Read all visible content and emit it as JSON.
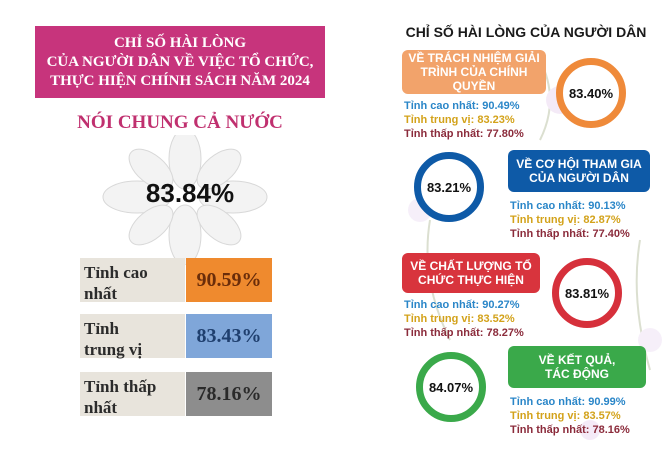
{
  "left": {
    "title_lines": [
      "CHỈ SỐ HÀI LÒNG",
      "CỦA NGƯỜI DÂN VỀ VIỆC TỔ CHỨC,",
      "THỰC HIỆN CHÍNH SÁCH NĂM 2024"
    ],
    "subtitle": "NÓI CHUNG CẢ NƯỚC",
    "overall": "83.84%",
    "stats": [
      {
        "label_1": "Tỉnh cao",
        "label_2": "nhất",
        "value": "90.59%",
        "color": "#ef8a2e"
      },
      {
        "label_1": "Tỉnh",
        "label_2": "trung vị",
        "value": "83.43%",
        "color": "#7fa6d9"
      },
      {
        "label_1": "Tỉnh thấp",
        "label_2": "nhất",
        "value": "78.16%",
        "color": "#8d8d8d"
      }
    ]
  },
  "right": {
    "title": "CHỈ SỐ HÀI LÒNG CỦA NGƯỜI DÂN",
    "sections": [
      {
        "heading": "VỀ TRÁCH NHIỆM GIẢI TRÌNH CỦA CHÍNH QUYỀN",
        "heading_1": "VỀ TRÁCH NHIỆM GIẢI",
        "heading_2": "TRÌNH CỦA CHÍNH",
        "heading_3": "QUYỀN",
        "value": "83.40%",
        "high": "Tỉnh cao nhất: 90.49%",
        "median": "Tỉnh trung vị: 83.23%",
        "low": "Tỉnh thấp nhất: 77.80%",
        "pill_color": "#f2a36b",
        "ring_color": "#ef8a3a"
      },
      {
        "heading_1": "VỀ CƠ HỘI THAM GIA",
        "heading_2": "CỦA NGƯỜI DÂN",
        "value": "83.21%",
        "high": "Tỉnh cao nhất: 90.13%",
        "median": "Tỉnh trung vị: 82.87%",
        "low": "Tỉnh thấp nhất: 77.40%",
        "pill_color": "#0e5aa7",
        "ring_color": "#0e5aa7"
      },
      {
        "heading_1": "VỀ CHẤT LƯỢNG TỔ",
        "heading_2": "CHỨC THỰC HIỆN",
        "value": "83.81%",
        "high": "Tỉnh cao nhất: 90.27%",
        "median": "Tỉnh trung vị: 83.52%",
        "low": "Tỉnh thấp nhất: 78.27%",
        "pill_color": "#d8343d",
        "ring_color": "#d6303b"
      },
      {
        "heading_1": "VỀ KẾT QUẢ,",
        "heading_2": "TÁC ĐỘNG",
        "value": "84.07%",
        "high": "Tỉnh cao nhất: 90.99%",
        "median": "Tỉnh trung vị: 83.57%",
        "low": "Tỉnh thấp nhất: 78.16%",
        "pill_color": "#3aa94a",
        "ring_color": "#3aa94a"
      }
    ]
  }
}
